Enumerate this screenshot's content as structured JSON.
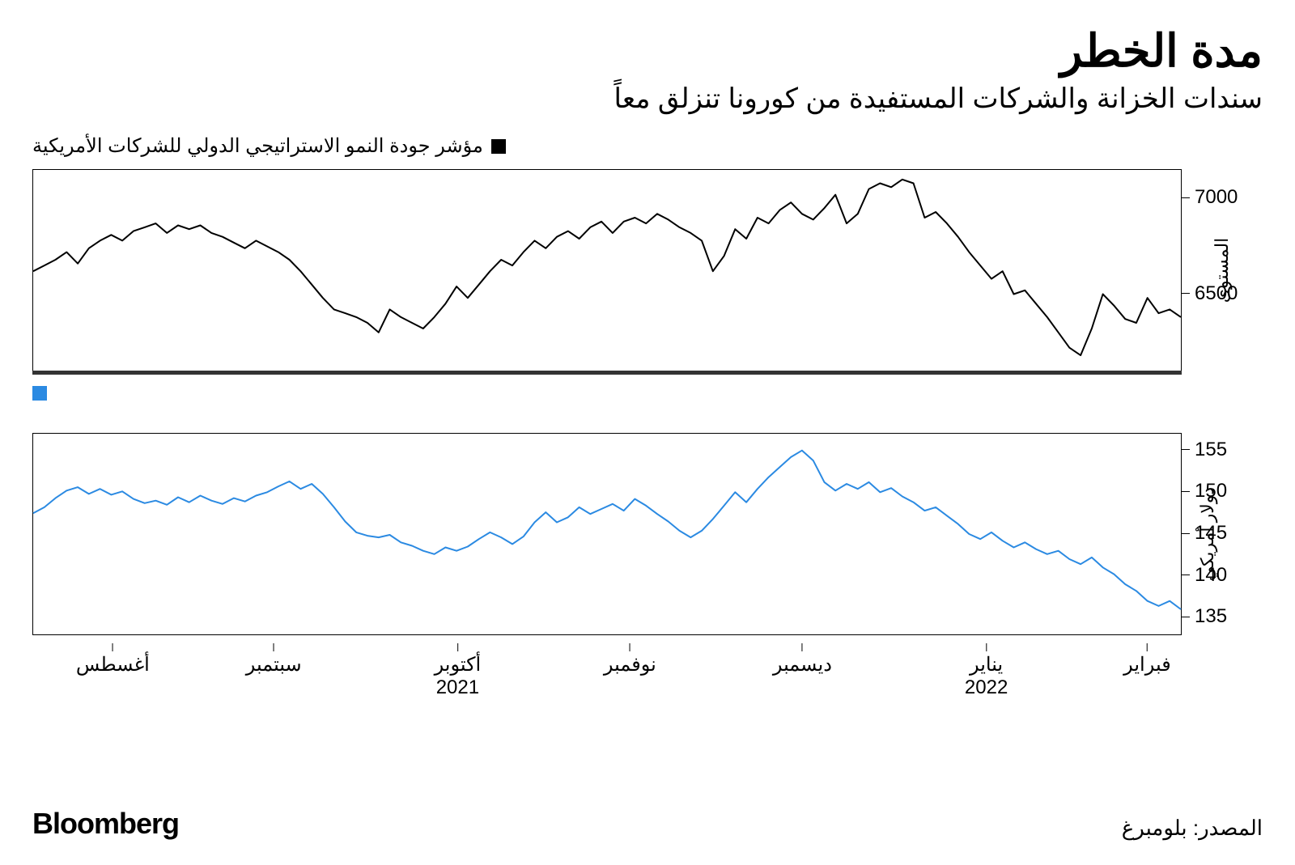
{
  "title": "مدة الخطر",
  "subtitle": "سندات الخزانة والشركات المستفيدة من كورونا تنزلق معاً",
  "brand": "Bloomberg",
  "source": "المصدر: بلومبرغ",
  "colors": {
    "background": "#ffffff",
    "text": "#000000",
    "axis": "#000000",
    "series_top": "#000000",
    "series_bottom": "#2b8ae2",
    "separator": "#333333"
  },
  "x_axis": {
    "ticks": [
      {
        "pos": 0.07,
        "month": "أغسطس",
        "year": ""
      },
      {
        "pos": 0.21,
        "month": "سبتمبر",
        "year": ""
      },
      {
        "pos": 0.37,
        "month": "أكتوبر",
        "year": "2021"
      },
      {
        "pos": 0.52,
        "month": "نوفمبر",
        "year": ""
      },
      {
        "pos": 0.67,
        "month": "ديسمبر",
        "year": ""
      },
      {
        "pos": 0.83,
        "month": "يناير",
        "year": "2022"
      },
      {
        "pos": 0.97,
        "month": "فبراير",
        "year": ""
      }
    ]
  },
  "chart_top": {
    "type": "line",
    "legend_label": "مؤشر جودة النمو الاستراتيجي الدولي للشركات الأمريكية",
    "legend_color": "#000000",
    "y_axis_label": "المستوى",
    "ylim": [
      6100,
      7150
    ],
    "yticks": [
      6500,
      7000
    ],
    "line_color": "#000000",
    "line_width": 2,
    "values": [
      6620,
      6650,
      6680,
      6720,
      6660,
      6740,
      6780,
      6810,
      6780,
      6830,
      6850,
      6870,
      6820,
      6860,
      6840,
      6860,
      6820,
      6800,
      6770,
      6740,
      6780,
      6750,
      6720,
      6680,
      6620,
      6550,
      6480,
      6420,
      6400,
      6380,
      6350,
      6300,
      6420,
      6380,
      6350,
      6320,
      6380,
      6450,
      6540,
      6480,
      6550,
      6620,
      6680,
      6650,
      6720,
      6780,
      6740,
      6800,
      6830,
      6790,
      6850,
      6880,
      6820,
      6880,
      6900,
      6870,
      6920,
      6890,
      6850,
      6820,
      6780,
      6620,
      6700,
      6840,
      6790,
      6900,
      6870,
      6940,
      6980,
      6920,
      6890,
      6950,
      7020,
      6870,
      6920,
      7050,
      7080,
      7060,
      7100,
      7080,
      6900,
      6930,
      6870,
      6800,
      6720,
      6650,
      6580,
      6620,
      6500,
      6520,
      6450,
      6380,
      6300,
      6220,
      6180,
      6320,
      6500,
      6440,
      6370,
      6350,
      6480,
      6400,
      6420,
      6380
    ]
  },
  "chart_bottom": {
    "type": "line",
    "legend_color": "#2b8ae2",
    "y_axis_label": "دولار أمريكي",
    "ylim": [
      133,
      157
    ],
    "yticks": [
      135,
      140,
      145,
      150,
      155
    ],
    "line_color": "#2b8ae2",
    "line_width": 2,
    "values": [
      147.5,
      148.2,
      149.3,
      150.2,
      150.6,
      149.8,
      150.4,
      149.7,
      150.1,
      149.2,
      148.7,
      149.0,
      148.5,
      149.4,
      148.8,
      149.6,
      149.0,
      148.6,
      149.3,
      148.9,
      149.6,
      150.0,
      150.7,
      151.3,
      150.4,
      151.0,
      149.8,
      148.2,
      146.5,
      145.2,
      144.8,
      144.6,
      144.9,
      144.0,
      143.6,
      143.0,
      142.6,
      143.4,
      143.0,
      143.5,
      144.4,
      145.2,
      144.6,
      143.8,
      144.7,
      146.4,
      147.6,
      146.4,
      147.0,
      148.2,
      147.4,
      148.0,
      148.6,
      147.8,
      149.2,
      148.4,
      147.4,
      146.5,
      145.4,
      144.6,
      145.4,
      146.8,
      148.4,
      150.0,
      148.8,
      150.4,
      151.8,
      153.0,
      154.2,
      155.0,
      153.8,
      151.2,
      150.2,
      151.0,
      150.4,
      151.2,
      150.0,
      150.5,
      149.5,
      148.8,
      147.8,
      148.2,
      147.2,
      146.2,
      145.0,
      144.4,
      145.2,
      144.2,
      143.4,
      144.0,
      143.2,
      142.6,
      143.0,
      142.0,
      141.4,
      142.2,
      141.0,
      140.2,
      139.0,
      138.2,
      137.0,
      136.4,
      137.0,
      136.0
    ]
  }
}
